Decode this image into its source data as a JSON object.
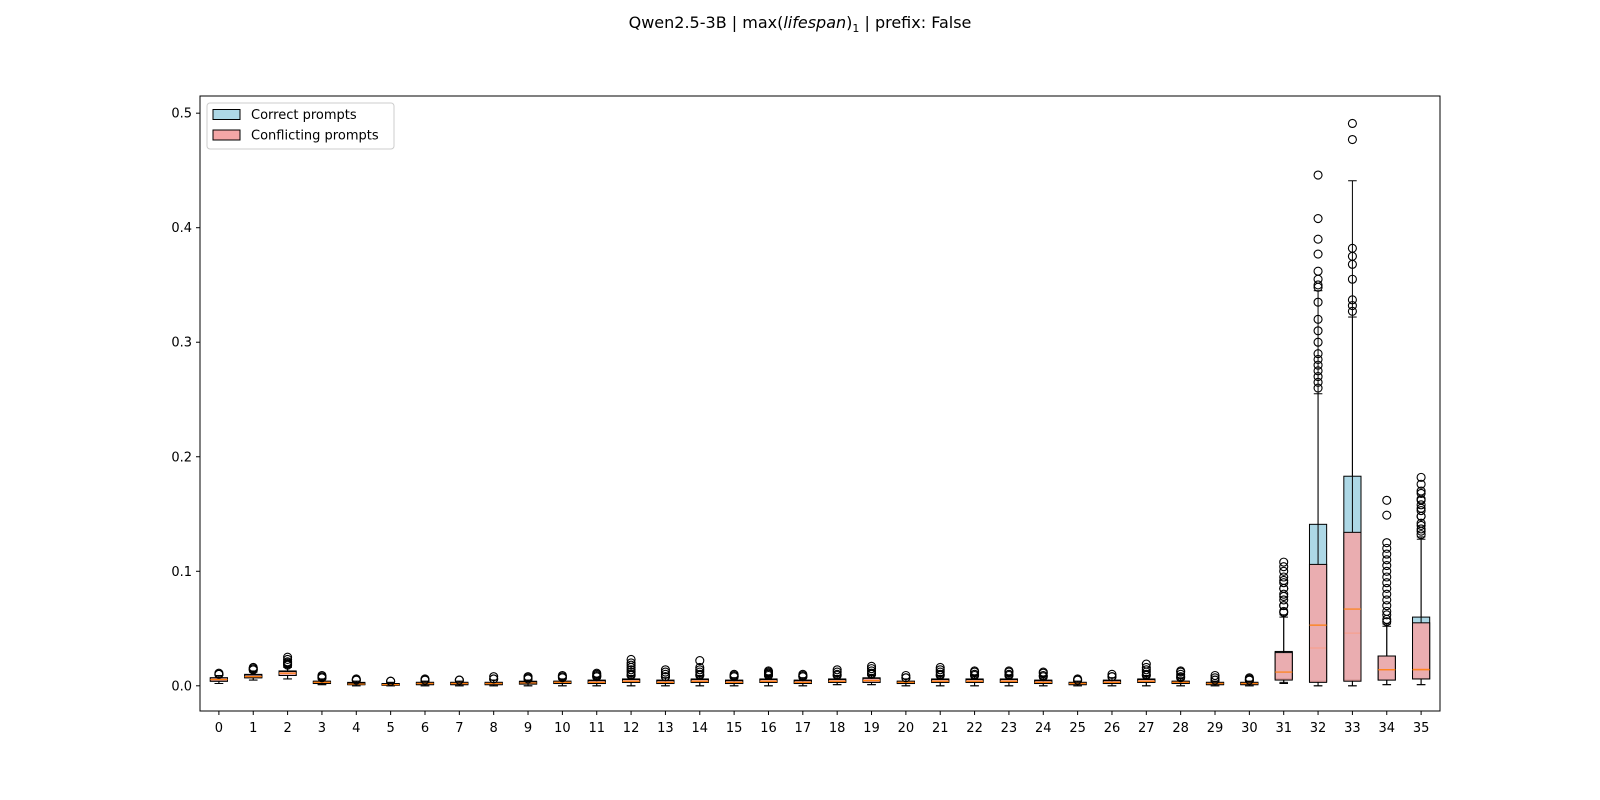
{
  "chart_data": {
    "type": "boxplot",
    "title": {
      "prefix": "Qwen2.5-3B | max(",
      "italic": "lifespan",
      "close": ")",
      "subscript": "1",
      "suffix": " | prefix: False"
    },
    "xlabel": "",
    "ylabel": "",
    "ylim": [
      -0.022,
      0.515
    ],
    "yticks": [
      "0.0",
      "0.1",
      "0.2",
      "0.3",
      "0.4",
      "0.5"
    ],
    "categories": [
      "0",
      "1",
      "2",
      "3",
      "4",
      "5",
      "6",
      "7",
      "8",
      "9",
      "10",
      "11",
      "12",
      "13",
      "14",
      "15",
      "16",
      "17",
      "18",
      "19",
      "20",
      "21",
      "22",
      "23",
      "24",
      "25",
      "26",
      "27",
      "28",
      "29",
      "30",
      "31",
      "32",
      "33",
      "34",
      "35"
    ],
    "legend": {
      "position": "top-left",
      "entries": [
        "Correct prompts",
        "Conflicting prompts"
      ]
    },
    "colors": {
      "correct": "#add8e6",
      "conflicting": "#f4a6a6",
      "median": "#ff7f0e"
    },
    "series": [
      {
        "name": "Correct prompts",
        "boxes": [
          {
            "q1": 0.004,
            "med": 0.0055,
            "q3": 0.007,
            "wlo": 0.002,
            "whi": 0.009,
            "fliers": [
              0.01,
              0.011
            ]
          },
          {
            "q1": 0.007,
            "med": 0.008,
            "q3": 0.01,
            "wlo": 0.005,
            "whi": 0.013,
            "fliers": [
              0.014,
              0.015,
              0.016
            ]
          },
          {
            "q1": 0.009,
            "med": 0.011,
            "q3": 0.013,
            "wlo": 0.006,
            "whi": 0.017,
            "fliers": [
              0.019,
              0.021,
              0.023,
              0.025
            ]
          },
          {
            "q1": 0.002,
            "med": 0.003,
            "q3": 0.004,
            "wlo": 0.001,
            "whi": 0.006,
            "fliers": [
              0.007,
              0.008,
              0.009
            ]
          },
          {
            "q1": 0.001,
            "med": 0.0015,
            "q3": 0.003,
            "wlo": 0.0,
            "whi": 0.004,
            "fliers": [
              0.005,
              0.006
            ]
          },
          {
            "q1": 0.0005,
            "med": 0.001,
            "q3": 0.002,
            "wlo": 0.0,
            "whi": 0.003,
            "fliers": [
              0.004
            ]
          },
          {
            "q1": 0.001,
            "med": 0.002,
            "q3": 0.003,
            "wlo": 0.0,
            "whi": 0.004,
            "fliers": [
              0.005,
              0.006
            ]
          },
          {
            "q1": 0.001,
            "med": 0.002,
            "q3": 0.003,
            "wlo": 0.0,
            "whi": 0.004,
            "fliers": [
              0.005
            ]
          },
          {
            "q1": 0.001,
            "med": 0.002,
            "q3": 0.003,
            "wlo": 0.0,
            "whi": 0.005,
            "fliers": [
              0.006,
              0.008
            ]
          },
          {
            "q1": 0.0015,
            "med": 0.0025,
            "q3": 0.004,
            "wlo": 0.0,
            "whi": 0.005,
            "fliers": [
              0.007,
              0.008
            ]
          },
          {
            "q1": 0.002,
            "med": 0.003,
            "q3": 0.004,
            "wlo": 0.0,
            "whi": 0.006,
            "fliers": [
              0.008,
              0.009
            ]
          },
          {
            "q1": 0.002,
            "med": 0.003,
            "q3": 0.005,
            "wlo": 0.0,
            "whi": 0.007,
            "fliers": [
              0.008,
              0.009,
              0.01,
              0.011
            ]
          },
          {
            "q1": 0.003,
            "med": 0.004,
            "q3": 0.006,
            "wlo": 0.0,
            "whi": 0.009,
            "fliers": [
              0.01,
              0.012,
              0.014,
              0.016,
              0.018,
              0.02,
              0.023
            ]
          },
          {
            "q1": 0.002,
            "med": 0.003,
            "q3": 0.005,
            "wlo": 0.0,
            "whi": 0.007,
            "fliers": [
              0.008,
              0.01,
              0.012,
              0.014
            ]
          },
          {
            "q1": 0.003,
            "med": 0.004,
            "q3": 0.006,
            "wlo": 0.0,
            "whi": 0.009,
            "fliers": [
              0.01,
              0.012,
              0.014,
              0.016,
              0.022
            ]
          },
          {
            "q1": 0.002,
            "med": 0.003,
            "q3": 0.005,
            "wlo": 0.0,
            "whi": 0.007,
            "fliers": [
              0.008,
              0.009,
              0.01
            ]
          },
          {
            "q1": 0.003,
            "med": 0.004,
            "q3": 0.006,
            "wlo": 0.0,
            "whi": 0.009,
            "fliers": [
              0.01,
              0.011,
              0.012,
              0.013
            ]
          },
          {
            "q1": 0.002,
            "med": 0.003,
            "q3": 0.005,
            "wlo": 0.0,
            "whi": 0.007,
            "fliers": [
              0.008,
              0.009,
              0.01
            ]
          },
          {
            "q1": 0.003,
            "med": 0.004,
            "q3": 0.006,
            "wlo": 0.001,
            "whi": 0.009,
            "fliers": [
              0.01,
              0.012,
              0.014
            ]
          },
          {
            "q1": 0.003,
            "med": 0.005,
            "q3": 0.007,
            "wlo": 0.001,
            "whi": 0.01,
            "fliers": [
              0.011,
              0.013,
              0.015,
              0.017
            ]
          },
          {
            "q1": 0.002,
            "med": 0.003,
            "q3": 0.004,
            "wlo": 0.0,
            "whi": 0.006,
            "fliers": [
              0.007,
              0.009
            ]
          },
          {
            "q1": 0.003,
            "med": 0.004,
            "q3": 0.006,
            "wlo": 0.0,
            "whi": 0.009,
            "fliers": [
              0.01,
              0.012,
              0.014,
              0.016
            ]
          },
          {
            "q1": 0.003,
            "med": 0.004,
            "q3": 0.006,
            "wlo": 0.0,
            "whi": 0.009,
            "fliers": [
              0.01,
              0.012,
              0.013
            ]
          },
          {
            "q1": 0.003,
            "med": 0.004,
            "q3": 0.006,
            "wlo": 0.0,
            "whi": 0.009,
            "fliers": [
              0.01,
              0.012,
              0.013
            ]
          },
          {
            "q1": 0.002,
            "med": 0.003,
            "q3": 0.005,
            "wlo": 0.0,
            "whi": 0.008,
            "fliers": [
              0.009,
              0.011,
              0.012
            ]
          },
          {
            "q1": 0.001,
            "med": 0.002,
            "q3": 0.003,
            "wlo": 0.0,
            "whi": 0.004,
            "fliers": [
              0.005,
              0.006
            ]
          },
          {
            "q1": 0.002,
            "med": 0.003,
            "q3": 0.005,
            "wlo": 0.0,
            "whi": 0.007,
            "fliers": [
              0.008,
              0.01
            ]
          },
          {
            "q1": 0.003,
            "med": 0.004,
            "q3": 0.006,
            "wlo": 0.0,
            "whi": 0.009,
            "fliers": [
              0.01,
              0.012,
              0.014,
              0.016,
              0.019
            ]
          },
          {
            "q1": 0.002,
            "med": 0.003,
            "q3": 0.004,
            "wlo": 0.0,
            "whi": 0.007,
            "fliers": [
              0.008,
              0.01,
              0.012,
              0.013
            ]
          },
          {
            "q1": 0.001,
            "med": 0.002,
            "q3": 0.003,
            "wlo": 0.0,
            "whi": 0.004,
            "fliers": [
              0.005,
              0.007,
              0.009
            ]
          },
          {
            "q1": 0.001,
            "med": 0.002,
            "q3": 0.003,
            "wlo": 0.0,
            "whi": 0.004,
            "fliers": [
              0.005,
              0.006,
              0.007
            ]
          },
          {
            "q1": 0.006,
            "med": 0.012,
            "q3": 0.03,
            "wlo": 0.003,
            "whi": 0.062,
            "fliers": [
              0.065,
              0.07,
              0.075,
              0.08,
              0.085,
              0.09,
              0.095,
              0.1,
              0.104,
              0.108
            ]
          },
          {
            "q1": 0.004,
            "med": 0.033,
            "q3": 0.141,
            "wlo": 0.0,
            "whi": 0.345,
            "fliers": [
              0.35,
              0.355,
              0.362,
              0.377,
              0.39,
              0.408,
              0.446
            ]
          },
          {
            "q1": 0.005,
            "med": 0.046,
            "q3": 0.183,
            "wlo": 0.0,
            "whi": 0.441,
            "fliers": [
              0.477,
              0.491
            ]
          },
          {
            "q1": 0.005,
            "med": 0.014,
            "q3": 0.026,
            "wlo": 0.001,
            "whi": 0.054,
            "fliers": [
              0.058,
              0.065,
              0.075,
              0.085,
              0.095,
              0.105,
              0.115,
              0.125,
              0.149,
              0.162
            ]
          },
          {
            "q1": 0.006,
            "med": 0.015,
            "q3": 0.06,
            "wlo": 0.001,
            "whi": 0.13,
            "fliers": [
              0.135,
              0.14,
              0.148,
              0.155,
              0.162,
              0.17,
              0.176,
              0.182
            ]
          }
        ]
      },
      {
        "name": "Conflicting prompts",
        "boxes": [
          {
            "q1": 0.004,
            "med": 0.0055,
            "q3": 0.007,
            "wlo": 0.002,
            "whi": 0.009,
            "fliers": [
              0.01
            ]
          },
          {
            "q1": 0.007,
            "med": 0.008,
            "q3": 0.0095,
            "wlo": 0.005,
            "whi": 0.012,
            "fliers": [
              0.014
            ]
          },
          {
            "q1": 0.009,
            "med": 0.011,
            "q3": 0.0125,
            "wlo": 0.006,
            "whi": 0.016,
            "fliers": [
              0.018,
              0.02
            ]
          },
          {
            "q1": 0.002,
            "med": 0.003,
            "q3": 0.004,
            "wlo": 0.001,
            "whi": 0.006,
            "fliers": [
              0.007
            ]
          },
          {
            "q1": 0.001,
            "med": 0.0015,
            "q3": 0.0025,
            "wlo": 0.0,
            "whi": 0.004,
            "fliers": [
              0.005
            ]
          },
          {
            "q1": 0.0005,
            "med": 0.001,
            "q3": 0.002,
            "wlo": 0.0,
            "whi": 0.003,
            "fliers": [
              0.004
            ]
          },
          {
            "q1": 0.001,
            "med": 0.002,
            "q3": 0.003,
            "wlo": 0.0,
            "whi": 0.004,
            "fliers": [
              0.005
            ]
          },
          {
            "q1": 0.001,
            "med": 0.002,
            "q3": 0.003,
            "wlo": 0.0,
            "whi": 0.004,
            "fliers": [
              0.005
            ]
          },
          {
            "q1": 0.001,
            "med": 0.002,
            "q3": 0.003,
            "wlo": 0.0,
            "whi": 0.005,
            "fliers": [
              0.006
            ]
          },
          {
            "q1": 0.0015,
            "med": 0.0025,
            "q3": 0.0035,
            "wlo": 0.0,
            "whi": 0.005,
            "fliers": [
              0.006
            ]
          },
          {
            "q1": 0.002,
            "med": 0.003,
            "q3": 0.004,
            "wlo": 0.0,
            "whi": 0.006,
            "fliers": [
              0.007
            ]
          },
          {
            "q1": 0.002,
            "med": 0.003,
            "q3": 0.0045,
            "wlo": 0.0,
            "whi": 0.007,
            "fliers": [
              0.008
            ]
          },
          {
            "q1": 0.003,
            "med": 0.004,
            "q3": 0.0055,
            "wlo": 0.0,
            "whi": 0.008,
            "fliers": [
              0.009
            ]
          },
          {
            "q1": 0.002,
            "med": 0.003,
            "q3": 0.0045,
            "wlo": 0.0,
            "whi": 0.007,
            "fliers": [
              0.008
            ]
          },
          {
            "q1": 0.003,
            "med": 0.004,
            "q3": 0.0055,
            "wlo": 0.0,
            "whi": 0.008,
            "fliers": [
              0.009
            ]
          },
          {
            "q1": 0.002,
            "med": 0.003,
            "q3": 0.0045,
            "wlo": 0.0,
            "whi": 0.007,
            "fliers": [
              0.008
            ]
          },
          {
            "q1": 0.003,
            "med": 0.004,
            "q3": 0.0055,
            "wlo": 0.0,
            "whi": 0.008,
            "fliers": [
              0.009
            ]
          },
          {
            "q1": 0.002,
            "med": 0.003,
            "q3": 0.0045,
            "wlo": 0.0,
            "whi": 0.007,
            "fliers": [
              0.008
            ]
          },
          {
            "q1": 0.003,
            "med": 0.004,
            "q3": 0.0055,
            "wlo": 0.001,
            "whi": 0.008,
            "fliers": [
              0.009
            ]
          },
          {
            "q1": 0.003,
            "med": 0.0045,
            "q3": 0.0065,
            "wlo": 0.001,
            "whi": 0.009,
            "fliers": [
              0.01
            ]
          },
          {
            "q1": 0.002,
            "med": 0.003,
            "q3": 0.004,
            "wlo": 0.0,
            "whi": 0.006,
            "fliers": [
              0.007
            ]
          },
          {
            "q1": 0.003,
            "med": 0.004,
            "q3": 0.0055,
            "wlo": 0.0,
            "whi": 0.008,
            "fliers": [
              0.009
            ]
          },
          {
            "q1": 0.003,
            "med": 0.004,
            "q3": 0.0055,
            "wlo": 0.0,
            "whi": 0.008,
            "fliers": [
              0.009
            ]
          },
          {
            "q1": 0.003,
            "med": 0.004,
            "q3": 0.0055,
            "wlo": 0.0,
            "whi": 0.008,
            "fliers": [
              0.009
            ]
          },
          {
            "q1": 0.002,
            "med": 0.003,
            "q3": 0.0045,
            "wlo": 0.0,
            "whi": 0.007,
            "fliers": [
              0.008
            ]
          },
          {
            "q1": 0.001,
            "med": 0.002,
            "q3": 0.003,
            "wlo": 0.0,
            "whi": 0.004,
            "fliers": [
              0.005
            ]
          },
          {
            "q1": 0.002,
            "med": 0.003,
            "q3": 0.0045,
            "wlo": 0.0,
            "whi": 0.007,
            "fliers": [
              0.008
            ]
          },
          {
            "q1": 0.003,
            "med": 0.004,
            "q3": 0.0055,
            "wlo": 0.0,
            "whi": 0.008,
            "fliers": [
              0.009
            ]
          },
          {
            "q1": 0.002,
            "med": 0.003,
            "q3": 0.004,
            "wlo": 0.0,
            "whi": 0.006,
            "fliers": [
              0.007
            ]
          },
          {
            "q1": 0.001,
            "med": 0.002,
            "q3": 0.003,
            "wlo": 0.0,
            "whi": 0.004,
            "fliers": [
              0.005
            ]
          },
          {
            "q1": 0.001,
            "med": 0.002,
            "q3": 0.003,
            "wlo": 0.0,
            "whi": 0.004,
            "fliers": [
              0.005
            ]
          },
          {
            "q1": 0.005,
            "med": 0.012,
            "q3": 0.029,
            "wlo": 0.002,
            "whi": 0.06,
            "fliers": [
              0.064,
              0.07,
              0.078,
              0.085,
              0.092
            ]
          },
          {
            "q1": 0.003,
            "med": 0.053,
            "q3": 0.106,
            "wlo": 0.0,
            "whi": 0.255,
            "fliers": [
              0.26,
              0.265,
              0.27,
              0.275,
              0.28,
              0.285,
              0.29,
              0.3,
              0.31,
              0.32,
              0.335,
              0.348
            ]
          },
          {
            "q1": 0.004,
            "med": 0.067,
            "q3": 0.134,
            "wlo": 0.0,
            "whi": 0.322,
            "fliers": [
              0.327,
              0.332,
              0.337,
              0.355,
              0.368,
              0.375,
              0.382
            ]
          },
          {
            "q1": 0.005,
            "med": 0.014,
            "q3": 0.026,
            "wlo": 0.001,
            "whi": 0.052,
            "fliers": [
              0.056,
              0.062,
              0.07,
              0.08,
              0.09,
              0.1,
              0.11,
              0.12
            ]
          },
          {
            "q1": 0.006,
            "med": 0.014,
            "q3": 0.055,
            "wlo": 0.001,
            "whi": 0.128,
            "fliers": [
              0.132,
              0.137,
              0.142,
              0.148,
              0.153,
              0.158,
              0.163,
              0.168
            ]
          }
        ]
      }
    ]
  }
}
